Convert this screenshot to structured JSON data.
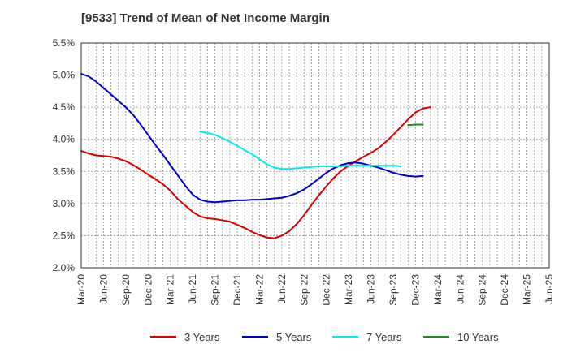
{
  "chart_data": {
    "type": "line",
    "title": "[9533]  Trend of Mean of Net Income Margin",
    "xlabel": "",
    "ylabel": "",
    "x_ticks": [
      "Mar-20",
      "Jun-20",
      "Sep-20",
      "Dec-20",
      "Mar-21",
      "Jun-21",
      "Sep-21",
      "Dec-21",
      "Mar-22",
      "Jun-22",
      "Sep-22",
      "Dec-22",
      "Mar-23",
      "Jun-23",
      "Sep-23",
      "Dec-23",
      "Mar-24",
      "Jun-24",
      "Sep-24",
      "Dec-24",
      "Mar-25",
      "Jun-25"
    ],
    "y_ticks": [
      "2.0%",
      "2.5%",
      "3.0%",
      "3.5%",
      "4.0%",
      "4.5%",
      "5.0%",
      "5.5%"
    ],
    "ylim": [
      2.0,
      5.5
    ],
    "grid": true,
    "legend_position": "bottom",
    "series": [
      {
        "name": "3 Years",
        "color": "#dd0000",
        "start_index": 0,
        "values": [
          3.82,
          3.78,
          3.75,
          3.74,
          3.73,
          3.7,
          3.66,
          3.6,
          3.53,
          3.45,
          3.38,
          3.3,
          3.2,
          3.07,
          2.97,
          2.87,
          2.8,
          2.77,
          2.76,
          2.74,
          2.72,
          2.67,
          2.62,
          2.56,
          2.51,
          2.47,
          2.46,
          2.5,
          2.57,
          2.68,
          2.82,
          2.98,
          3.13,
          3.27,
          3.4,
          3.51,
          3.59,
          3.66,
          3.73,
          3.79,
          3.86,
          3.96,
          4.07,
          4.19,
          4.31,
          4.42,
          4.48,
          4.5
        ]
      },
      {
        "name": "5 Years",
        "color": "#0000cc",
        "start_index": 0,
        "values": [
          5.02,
          4.98,
          4.9,
          4.8,
          4.7,
          4.6,
          4.5,
          4.38,
          4.23,
          4.07,
          3.91,
          3.76,
          3.6,
          3.44,
          3.28,
          3.14,
          3.06,
          3.03,
          3.02,
          3.03,
          3.04,
          3.05,
          3.05,
          3.06,
          3.06,
          3.07,
          3.08,
          3.09,
          3.12,
          3.16,
          3.22,
          3.3,
          3.39,
          3.48,
          3.55,
          3.6,
          3.63,
          3.64,
          3.62,
          3.59,
          3.56,
          3.52,
          3.48,
          3.45,
          3.43,
          3.42,
          3.43
        ]
      },
      {
        "name": "7 Years",
        "color": "#00eeee",
        "start_index": 16,
        "values": [
          4.12,
          4.1,
          4.07,
          4.02,
          3.96,
          3.9,
          3.83,
          3.77,
          3.69,
          3.61,
          3.56,
          3.54,
          3.54,
          3.55,
          3.56,
          3.57,
          3.58,
          3.58,
          3.58,
          3.58,
          3.59,
          3.59,
          3.59,
          3.59,
          3.59,
          3.59,
          3.59,
          3.58
        ]
      },
      {
        "name": "10 Years",
        "color": "#228822",
        "start_index": 44,
        "values": [
          4.22,
          4.23,
          4.23
        ]
      }
    ]
  }
}
